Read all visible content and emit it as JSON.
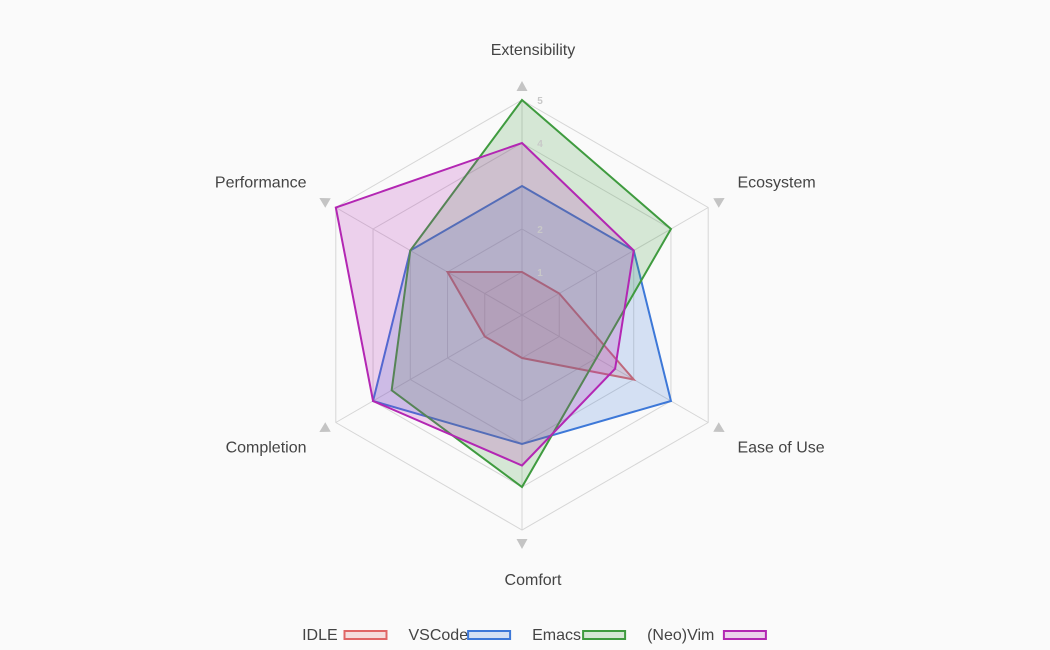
{
  "chart_data": {
    "type": "radar",
    "axes": [
      "Extensibility",
      "Ecosystem",
      "Ease of Use",
      "Comfort",
      "Completion",
      "Performance"
    ],
    "rlim": [
      0,
      5
    ],
    "ticks": [
      "1",
      "2",
      "4",
      "5"
    ],
    "tick_values": [
      1,
      2,
      4,
      5
    ],
    "grid": true,
    "legend_position": "bottom-center",
    "series": [
      {
        "name": "IDLE",
        "values": [
          1,
          1,
          3,
          1,
          1,
          2
        ],
        "color": "#e06666"
      },
      {
        "name": "VSCode",
        "values": [
          3,
          3,
          4,
          3,
          4,
          3
        ],
        "color": "#3d78d8"
      },
      {
        "name": "Emacs",
        "values": [
          5,
          4,
          2,
          4,
          3.5,
          3
        ],
        "color": "#3f9b3f"
      },
      {
        "name": "(Neo)Vim",
        "values": [
          4,
          3,
          2.5,
          3.5,
          4,
          5
        ],
        "color": "#b327b3"
      }
    ]
  }
}
